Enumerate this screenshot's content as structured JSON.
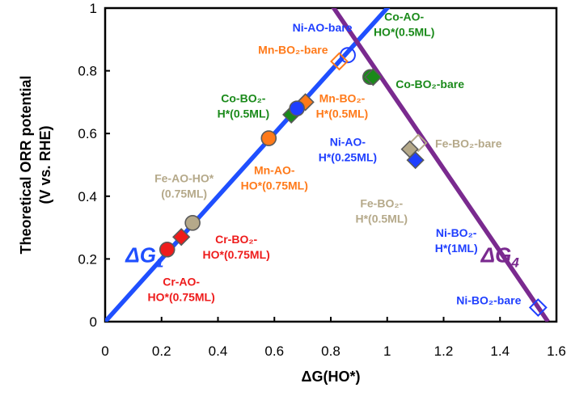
{
  "chart_data": {
    "type": "scatter",
    "xlabel": "ΔG(HO*)",
    "ylabel_line1": "Theoretical ORR potential",
    "ylabel_line2": "(V vs. RHE)",
    "xlim": [
      0,
      1.6
    ],
    "ylim": [
      0,
      1.0
    ],
    "xticks": [
      "0",
      "0.2",
      "0.4",
      "0.6",
      "0.8",
      "1",
      "1.2",
      "1.4",
      "1.6"
    ],
    "yticks": [
      "0",
      "0.2",
      "0.4",
      "0.6",
      "0.8",
      "1"
    ],
    "grid": false,
    "lines": [
      {
        "name": "ΔG",
        "sub": "1",
        "color": "#1f4fff",
        "x": [
          0,
          1.08
        ],
        "y": [
          0,
          1.08
        ]
      },
      {
        "name": "ΔG",
        "sub": "4",
        "color": "#7a2a8f",
        "x": [
          0.75,
          1.57
        ],
        "y": [
          1.08,
          0.0
        ]
      }
    ],
    "line_labels": [
      {
        "name": "ΔG",
        "sub": "1",
        "color": "#1f4fff",
        "x": 0.14,
        "y": 0.19
      },
      {
        "name": "ΔG",
        "sub": "4",
        "color": "#7a2a8f",
        "x": 1.4,
        "y": 0.19
      }
    ],
    "colors": {
      "ni": "#1f3fff",
      "mn": "#ff7a1a",
      "co": "#1a8a1a",
      "cr": "#ee1c1c",
      "fe": "#b5a98a"
    },
    "points": [
      {
        "shape": "circle",
        "filled": false,
        "color": "#1f3fff",
        "x": 0.86,
        "y": 0.85
      },
      {
        "shape": "diamond",
        "filled": false,
        "color": "#ff7a1a",
        "x": 0.83,
        "y": 0.83
      },
      {
        "shape": "circle",
        "filled": true,
        "color": "#1a8a1a",
        "x": 0.94,
        "y": 0.78
      },
      {
        "shape": "diamond",
        "filled": true,
        "color": "#1a8a1a",
        "x": 0.95,
        "y": 0.78
      },
      {
        "shape": "diamond",
        "filled": true,
        "color": "#ff7a1a",
        "x": 0.71,
        "y": 0.7
      },
      {
        "shape": "diamond",
        "filled": true,
        "color": "#1a8a1a",
        "x": 0.66,
        "y": 0.66
      },
      {
        "shape": "circle",
        "filled": true,
        "color": "#1f3fff",
        "x": 0.68,
        "y": 0.68
      },
      {
        "shape": "circle",
        "filled": true,
        "color": "#ff7a1a",
        "x": 0.58,
        "y": 0.585
      },
      {
        "shape": "diamond",
        "filled": false,
        "color": "#b5a98a",
        "x": 1.11,
        "y": 0.57
      },
      {
        "shape": "diamond",
        "filled": true,
        "color": "#b5a98a",
        "x": 1.08,
        "y": 0.55
      },
      {
        "shape": "diamond",
        "filled": true,
        "color": "#1f3fff",
        "x": 1.1,
        "y": 0.515
      },
      {
        "shape": "circle",
        "filled": true,
        "color": "#b5a98a",
        "x": 0.31,
        "y": 0.315
      },
      {
        "shape": "diamond",
        "filled": true,
        "color": "#ee1c1c",
        "x": 0.27,
        "y": 0.27
      },
      {
        "shape": "circle",
        "filled": true,
        "color": "#ee1c1c",
        "x": 0.22,
        "y": 0.23
      },
      {
        "shape": "diamond",
        "filled": false,
        "color": "#1f3fff",
        "x": 1.535,
        "y": 0.045
      }
    ],
    "annotations": [
      {
        "lines": [
          "Ni-AO-bare"
        ],
        "color": "#1f3fff",
        "x": 0.77,
        "y": 0.925,
        "anchor": "middle"
      },
      {
        "lines": [
          "Mn-BO₂-bare"
        ],
        "color": "#ff7a1a",
        "x": 0.79,
        "y": 0.855,
        "anchor": "end"
      },
      {
        "lines": [
          "Co-AO-",
          "HO*(0.5ML)"
        ],
        "color": "#1a8a1a",
        "x": 1.06,
        "y": 0.96,
        "anchor": "middle"
      },
      {
        "lines": [
          "Co-BO₂-bare"
        ],
        "color": "#1a8a1a",
        "x": 1.03,
        "y": 0.745,
        "anchor": "start"
      },
      {
        "lines": [
          "Co-BO₂-",
          "H*(0.5ML)"
        ],
        "color": "#1a8a1a",
        "x": 0.49,
        "y": 0.7,
        "anchor": "middle"
      },
      {
        "lines": [
          "Mn-BO₂-",
          "H*(0.5ML)"
        ],
        "color": "#ff7a1a",
        "x": 0.84,
        "y": 0.7,
        "anchor": "middle"
      },
      {
        "lines": [
          "Ni-AO-",
          "H*(0.25ML)"
        ],
        "color": "#1f3fff",
        "x": 0.86,
        "y": 0.56,
        "anchor": "middle"
      },
      {
        "lines": [
          "Mn-AO-",
          "HO*(0.75ML)"
        ],
        "color": "#ff7a1a",
        "x": 0.6,
        "y": 0.47,
        "anchor": "middle"
      },
      {
        "lines": [
          "Fe-BO₂-bare"
        ],
        "color": "#b5a98a",
        "x": 1.17,
        "y": 0.555,
        "anchor": "start"
      },
      {
        "lines": [
          "Fe-AO-HO*",
          "(0.75ML)"
        ],
        "color": "#b5a98a",
        "x": 0.28,
        "y": 0.445,
        "anchor": "middle"
      },
      {
        "lines": [
          "Fe-BO₂-",
          "H*(0.5ML)"
        ],
        "color": "#b5a98a",
        "x": 0.98,
        "y": 0.365,
        "anchor": "middle"
      },
      {
        "lines": [
          "Ni-BO₂-",
          "H*(1ML)"
        ],
        "color": "#1f3fff",
        "x": 1.245,
        "y": 0.27,
        "anchor": "middle"
      },
      {
        "lines": [
          "Cr-BO₂-",
          "HO*(0.75ML)"
        ],
        "color": "#ee1c1c",
        "x": 0.465,
        "y": 0.25,
        "anchor": "middle"
      },
      {
        "lines": [
          "Cr-AO-",
          "HO*(0.75ML)"
        ],
        "color": "#ee1c1c",
        "x": 0.27,
        "y": 0.115,
        "anchor": "middle"
      },
      {
        "lines": [
          "Ni-BO₂-bare"
        ],
        "color": "#1f3fff",
        "x": 1.36,
        "y": 0.055,
        "anchor": "middle"
      }
    ]
  }
}
